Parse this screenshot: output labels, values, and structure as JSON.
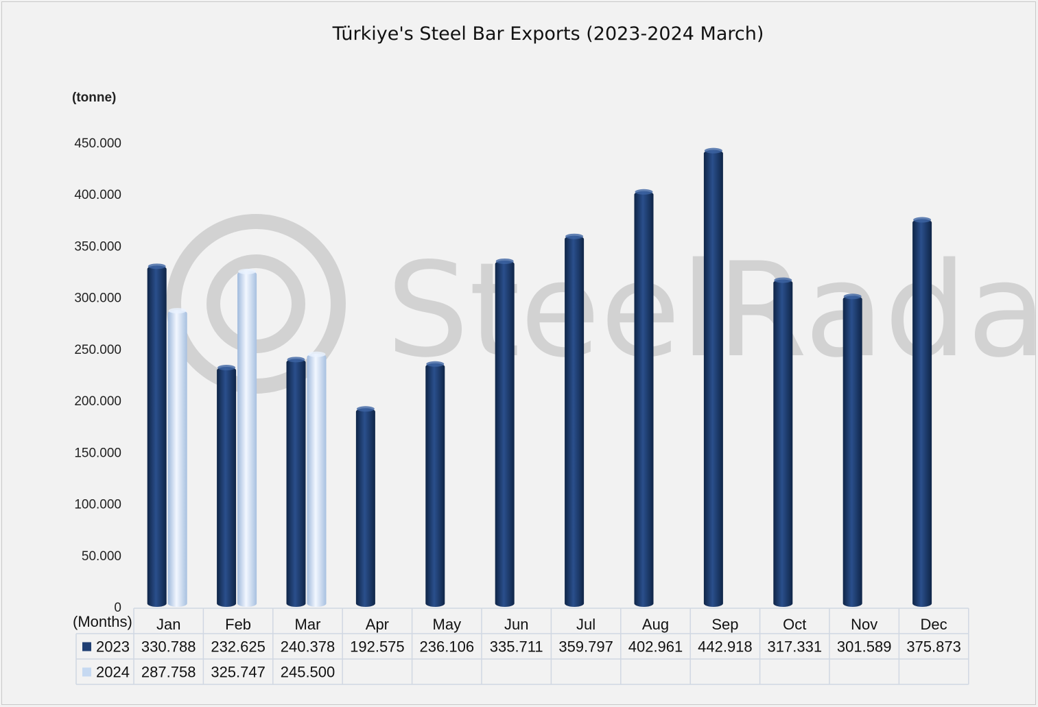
{
  "chart_data": {
    "type": "bar",
    "title": "Türkiye's Steel Bar Exports (2023-2024 March)",
    "ylabel": "(tonne)",
    "xlabel": "(Months)",
    "ylim": [
      0,
      450000
    ],
    "yticks": [
      0,
      50000,
      100000,
      150000,
      200000,
      250000,
      300000,
      350000,
      400000,
      450000
    ],
    "ytick_labels": [
      "0",
      "50.000",
      "100.000",
      "150.000",
      "200.000",
      "250.000",
      "300.000",
      "350.000",
      "400.000",
      "450.000"
    ],
    "categories": [
      "Jan",
      "Feb",
      "Mar",
      "Apr",
      "May",
      "Jun",
      "Jul",
      "Aug",
      "Sep",
      "Oct",
      "Nov",
      "Dec"
    ],
    "series": [
      {
        "name": "2023",
        "color": "#1f3f73",
        "values": [
          330788,
          232625,
          240378,
          192575,
          236106,
          335711,
          359797,
          402961,
          442918,
          317331,
          301589,
          375873
        ],
        "labels": [
          "330.788",
          "232.625",
          "240.378",
          "192.575",
          "236.106",
          "335.711",
          "359.797",
          "402.961",
          "442.918",
          "317.331",
          "301.589",
          "375.873"
        ]
      },
      {
        "name": "2024",
        "color": "#c6d9f1",
        "values": [
          287758,
          325747,
          245500,
          null,
          null,
          null,
          null,
          null,
          null,
          null,
          null,
          null
        ],
        "labels": [
          "287.758",
          "325.747",
          "245.500",
          "",
          "",
          "",
          "",
          "",
          "",
          "",
          "",
          ""
        ]
      }
    ],
    "grid": false,
    "legend": "data-table-left",
    "data_table": true
  },
  "watermark": {
    "text": "SteelRadar"
  }
}
